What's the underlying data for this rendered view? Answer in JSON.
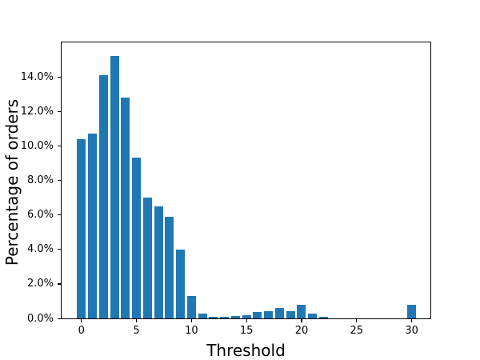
{
  "figure": {
    "background": "#ffffff",
    "text_color": "#000000",
    "spine_color": "#000000"
  },
  "chart_data": {
    "type": "bar",
    "title": "",
    "xlabel": "Threshold",
    "ylabel": "Percentage of orders",
    "x": [
      0,
      1,
      2,
      3,
      4,
      5,
      6,
      7,
      8,
      9,
      10,
      11,
      12,
      13,
      14,
      15,
      16,
      17,
      18,
      19,
      20,
      21,
      22,
      30
    ],
    "values": [
      10.4,
      10.7,
      14.1,
      15.2,
      12.8,
      9.3,
      7.0,
      6.5,
      5.9,
      4.0,
      1.3,
      0.3,
      0.1,
      0.1,
      0.15,
      0.2,
      0.35,
      0.4,
      0.6,
      0.4,
      0.8,
      0.3,
      0.1,
      0.8
    ],
    "values_unit": "percent of orders",
    "bar_color": "#1f77b4",
    "bar_width_units": 0.8,
    "xlim": [
      -1.8,
      31.7
    ],
    "ylim": [
      0,
      16
    ],
    "xticks": [
      {
        "value": 0,
        "label": "0"
      },
      {
        "value": 5,
        "label": "5"
      },
      {
        "value": 10,
        "label": "10"
      },
      {
        "value": 15,
        "label": "15"
      },
      {
        "value": 20,
        "label": "20"
      },
      {
        "value": 25,
        "label": "25"
      },
      {
        "value": 30,
        "label": "30"
      }
    ],
    "yticks": [
      {
        "value": 0,
        "label": "0.0%"
      },
      {
        "value": 2,
        "label": "2.0%"
      },
      {
        "value": 4,
        "label": "4.0%"
      },
      {
        "value": 6,
        "label": "6.0%"
      },
      {
        "value": 8,
        "label": "8.0%"
      },
      {
        "value": 10,
        "label": "10.0%"
      },
      {
        "value": 12,
        "label": "12.0%"
      },
      {
        "value": 14,
        "label": "14.0%"
      }
    ],
    "grid": false,
    "legend_position": "none"
  }
}
